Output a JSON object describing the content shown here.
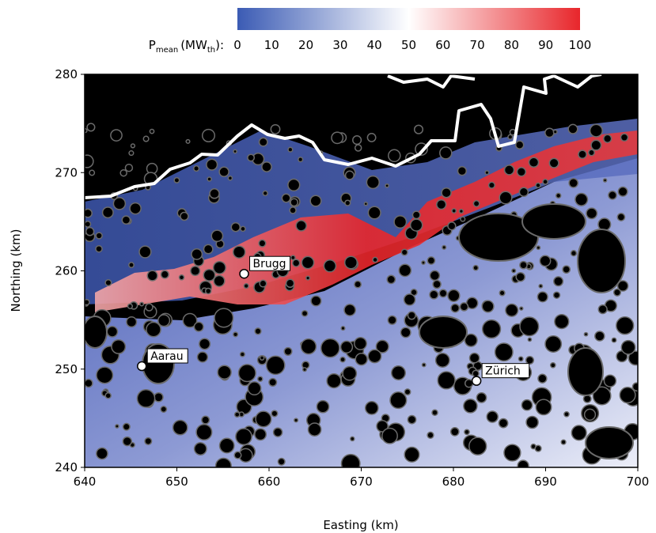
{
  "chart_data": {
    "type": "heatmap",
    "title": "",
    "xlabel": "Easting (km)",
    "ylabel": "Northing (km)",
    "xlim": [
      640,
      700
    ],
    "ylim": [
      240,
      280
    ],
    "xticks": [
      640,
      650,
      660,
      670,
      680,
      690,
      700
    ],
    "yticks": [
      240,
      250,
      260,
      270,
      280
    ],
    "colorbar": {
      "label_main": "P",
      "label_sub": "mean",
      "label_unit_pre": "(MW",
      "label_unit_sub": "th",
      "label_unit_post": "):",
      "min": 0,
      "max": 100,
      "ticks": [
        0,
        10,
        20,
        30,
        40,
        50,
        60,
        70,
        80,
        90,
        100
      ],
      "colors": [
        "#3b5bb4",
        "#ffffff",
        "#e8262b"
      ]
    },
    "background_color": "#000000",
    "border_color": "#ffffff",
    "cities": [
      {
        "name": "Brugg",
        "x": 657.3,
        "y": 259.7
      },
      {
        "name": "Aarau",
        "x": 646.2,
        "y": 250.3
      },
      {
        "name": "Zürich",
        "x": 682.5,
        "y": 248.8
      }
    ]
  }
}
